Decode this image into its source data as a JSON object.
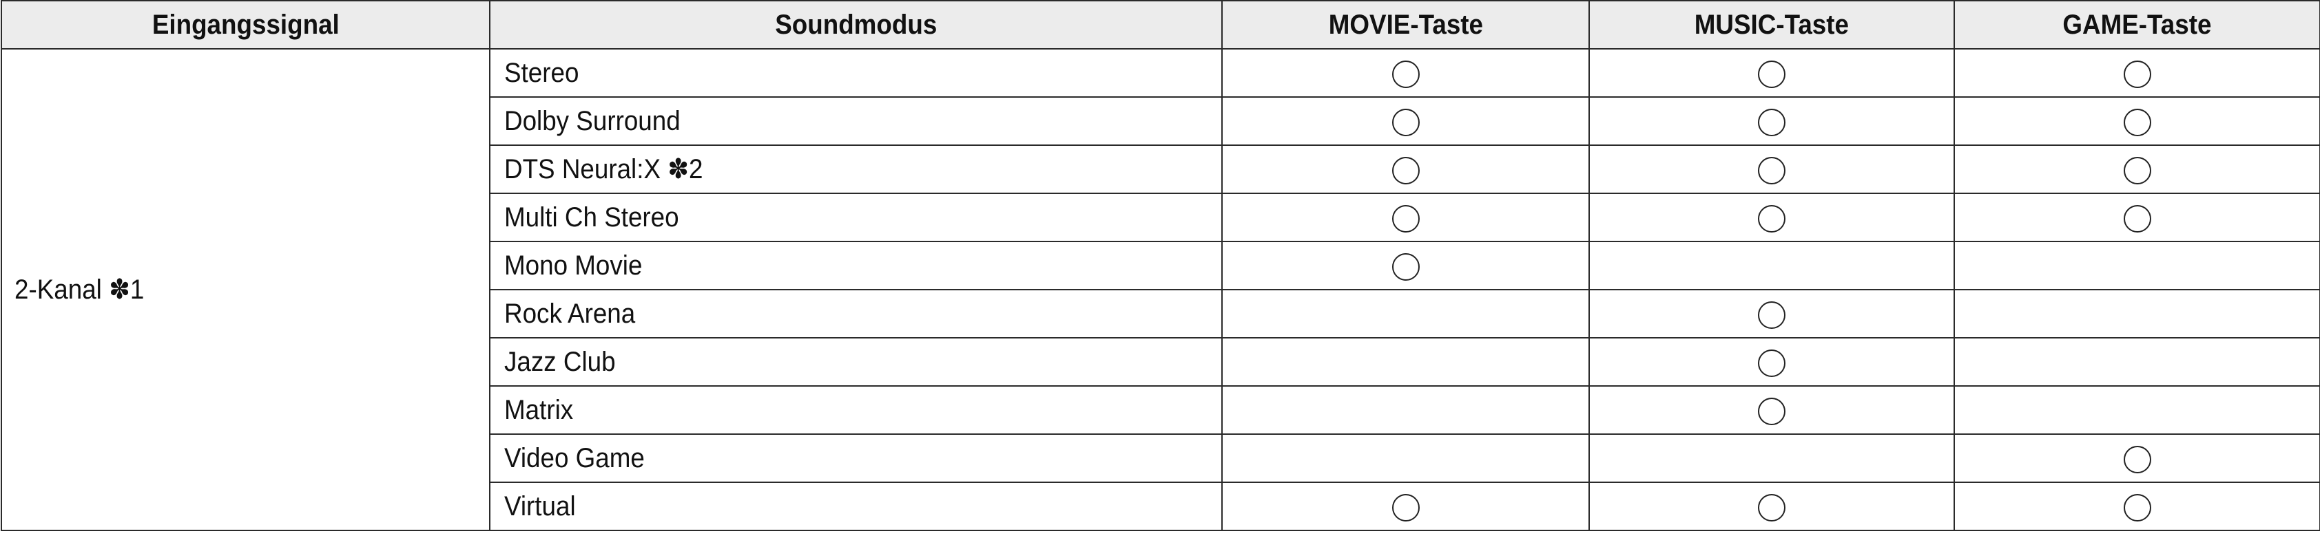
{
  "headers": [
    "Eingangssignal",
    "Soundmodus",
    "MOVIE-Taste",
    "MUSIC-Taste",
    "GAME-Taste"
  ],
  "signal": "2-Kanal ✽1",
  "rows": [
    {
      "mode": "Stereo",
      "movie": true,
      "music": true,
      "game": true
    },
    {
      "mode": "Dolby Surround",
      "movie": true,
      "music": true,
      "game": true
    },
    {
      "mode": "DTS Neural:X ✽2",
      "movie": true,
      "music": true,
      "game": true
    },
    {
      "mode": "Multi Ch Stereo",
      "movie": true,
      "music": true,
      "game": true
    },
    {
      "mode": "Mono Movie",
      "movie": true,
      "music": false,
      "game": false
    },
    {
      "mode": "Rock Arena",
      "movie": false,
      "music": true,
      "game": false
    },
    {
      "mode": "Jazz Club",
      "movie": false,
      "music": true,
      "game": false
    },
    {
      "mode": "Matrix",
      "movie": false,
      "music": true,
      "game": false
    },
    {
      "mode": "Video Game",
      "movie": false,
      "music": false,
      "game": true
    },
    {
      "mode": "Virtual",
      "movie": true,
      "music": true,
      "game": true
    }
  ],
  "mark_icon": "circle-icon"
}
